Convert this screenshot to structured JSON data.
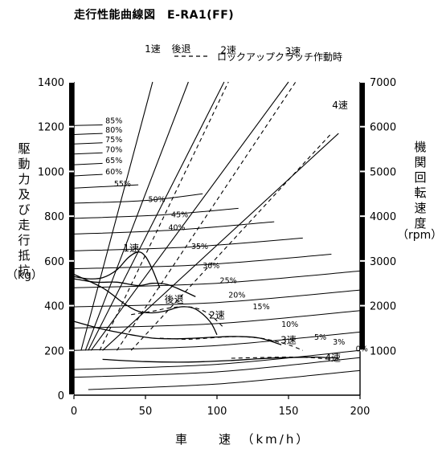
{
  "chart_data": {
    "type": "line",
    "title": "走行性能曲線図　E-RA1(FF)",
    "legend_dashed": "ロックアップクラッチ作動時",
    "xlabel": "車　　速　（km/h）",
    "ylabel_left": [
      "駆",
      "動",
      "力",
      "及",
      "び",
      "走",
      "行",
      "抵",
      "抗"
    ],
    "ylabel_left_unit": "（kg）",
    "ylabel_right": [
      "機",
      "関",
      "回",
      "転",
      "速",
      "度"
    ],
    "ylabel_right_unit": "（rpm）",
    "xlim": [
      0,
      200
    ],
    "ylim_left": [
      0,
      1400
    ],
    "ylim_right": [
      0,
      7000
    ],
    "xticks": [
      "0",
      "50",
      "100",
      "150",
      "200"
    ],
    "yticks_left": [
      "0",
      "200",
      "400",
      "600",
      "800",
      "1000",
      "1200",
      "1400"
    ],
    "yticks_right": [
      "1000",
      "2000",
      "3000",
      "4000",
      "5000",
      "6000",
      "7000"
    ],
    "rpm_lines": [
      {
        "label": "1速",
        "x": [
          5,
          55
        ],
        "rpm": [
          1000,
          7000
        ]
      },
      {
        "label": "後退",
        "x": [
          8,
          80
        ],
        "rpm": [
          1000,
          7000
        ]
      },
      {
        "label": "2速",
        "x": [
          10,
          105
        ],
        "rpm": [
          1000,
          7000
        ]
      },
      {
        "label": "3速",
        "x": [
          12,
          150
        ],
        "rpm": [
          1000,
          7000
        ]
      },
      {
        "label": "4速",
        "x": [
          20,
          185
        ],
        "rpm": [
          1000,
          5850
        ]
      }
    ],
    "rpm_lines_lockup": [
      {
        "label": "2速",
        "x": [
          18,
          108
        ],
        "rpm": [
          1000,
          7000
        ]
      },
      {
        "label": "3速",
        "x": [
          30,
          155
        ],
        "rpm": [
          1000,
          7000
        ]
      },
      {
        "label": "4速",
        "x": [
          40,
          180
        ],
        "rpm": [
          1000,
          5850
        ]
      }
    ],
    "drive_force_curves": [
      {
        "label": "1速",
        "x": [
          0,
          10,
          20,
          30,
          38,
          45,
          50,
          55,
          60
        ],
        "y": [
          530,
          520,
          525,
          560,
          615,
          640,
          620,
          560,
          480
        ]
      },
      {
        "label": "後退",
        "x": [
          0,
          15,
          30,
          45,
          55,
          65,
          75,
          85
        ],
        "y": [
          520,
          505,
          505,
          490,
          500,
          495,
          470,
          440
        ]
      },
      {
        "label": "2速",
        "x": [
          0,
          20,
          35,
          45,
          55,
          65,
          75,
          85,
          95,
          100
        ],
        "y": [
          540,
          480,
          410,
          375,
          368,
          378,
          395,
          385,
          330,
          270
        ]
      },
      {
        "label": "3速",
        "x": [
          0,
          20,
          40,
          55,
          70,
          85,
          100,
          115,
          130,
          145
        ],
        "y": [
          330,
          295,
          270,
          255,
          252,
          255,
          260,
          262,
          255,
          225
        ]
      },
      {
        "label": "4速",
        "x": [
          20,
          50,
          80,
          110,
          130,
          150,
          170,
          185
        ],
        "y": [
          160,
          150,
          148,
          155,
          163,
          168,
          170,
          165
        ]
      }
    ],
    "drive_force_curves_lockup": [
      {
        "label": "2速",
        "x": [
          40,
          55,
          65,
          75,
          85,
          95,
          105
        ],
        "y": [
          360,
          375,
          388,
          395,
          390,
          360,
          300
        ]
      },
      {
        "label": "3速",
        "x": [
          60,
          80,
          100,
          115,
          125,
          135,
          150,
          160
        ],
        "y": [
          255,
          250,
          258,
          262,
          258,
          250,
          225,
          200
        ]
      },
      {
        "label": "4速",
        "x": [
          110,
          130,
          150,
          165,
          180
        ],
        "y": [
          165,
          168,
          170,
          168,
          160
        ]
      }
    ],
    "resistance_curves": [
      {
        "label": "85%",
        "x": [
          0,
          20
        ],
        "y": [
          1205,
          1208
        ]
      },
      {
        "label": "80%",
        "x": [
          0,
          20
        ],
        "y": [
          1165,
          1170
        ]
      },
      {
        "label": "75%",
        "x": [
          0,
          20
        ],
        "y": [
          1123,
          1128
        ]
      },
      {
        "label": "70%",
        "x": [
          0,
          20
        ],
        "y": [
          1078,
          1083
        ]
      },
      {
        "label": "65%",
        "x": [
          0,
          20
        ],
        "y": [
          1030,
          1036
        ]
      },
      {
        "label": "60%",
        "x": [
          0,
          20
        ],
        "y": [
          980,
          987
        ]
      },
      {
        "label": "55%",
        "x": [
          0,
          45
        ],
        "y": [
          925,
          940
        ]
      },
      {
        "label": "50%",
        "x": [
          0,
          50,
          90
        ],
        "y": [
          858,
          870,
          900
        ]
      },
      {
        "label": "45%",
        "x": [
          0,
          60,
          115
        ],
        "y": [
          790,
          805,
          835
        ]
      },
      {
        "label": "40%",
        "x": [
          0,
          70,
          140
        ],
        "y": [
          720,
          738,
          775
        ]
      },
      {
        "label": "35%",
        "x": [
          0,
          80,
          160
        ],
        "y": [
          645,
          662,
          702
        ]
      },
      {
        "label": "30%",
        "x": [
          0,
          90,
          180
        ],
        "y": [
          565,
          583,
          630
        ]
      },
      {
        "label": "25%",
        "x": [
          0,
          100,
          200
        ],
        "y": [
          480,
          500,
          555
        ]
      },
      {
        "label": "20%",
        "x": [
          0,
          100,
          200
        ],
        "y": [
          395,
          414,
          470
        ]
      },
      {
        "label": "15%",
        "x": [
          0,
          100,
          200
        ],
        "y": [
          300,
          320,
          378
        ]
      },
      {
        "label": "10%",
        "x": [
          0,
          100,
          200
        ],
        "y": [
          200,
          222,
          282
        ]
      },
      {
        "label": "5%",
        "x": [
          0,
          100,
          200
        ],
        "y": [
          115,
          138,
          200
        ]
      },
      {
        "label": "3%",
        "x": [
          0,
          100,
          200
        ],
        "y": [
          80,
          104,
          168
        ]
      },
      {
        "label": "0%",
        "x": [
          10,
          100,
          200
        ],
        "y": [
          25,
          50,
          110
        ]
      }
    ],
    "resistance_label_positions": [
      {
        "label": "85%",
        "x": 22,
        "y": 1230
      },
      {
        "label": "80%",
        "x": 22,
        "y": 1188
      },
      {
        "label": "75%",
        "x": 22,
        "y": 1146
      },
      {
        "label": "70%",
        "x": 22,
        "y": 1100
      },
      {
        "label": "65%",
        "x": 22,
        "y": 1052
      },
      {
        "label": "60%",
        "x": 22,
        "y": 1002
      },
      {
        "label": "55%",
        "x": 28,
        "y": 948
      },
      {
        "label": "50%",
        "x": 52,
        "y": 878
      },
      {
        "label": "45%",
        "x": 68,
        "y": 810
      },
      {
        "label": "40%",
        "x": 66,
        "y": 752
      },
      {
        "label": "35%",
        "x": 82,
        "y": 668
      },
      {
        "label": "30%",
        "x": 90,
        "y": 582
      },
      {
        "label": "25%",
        "x": 102,
        "y": 515
      },
      {
        "label": "20%",
        "x": 108,
        "y": 450
      },
      {
        "label": "15%",
        "x": 125,
        "y": 398
      },
      {
        "label": "10%",
        "x": 145,
        "y": 320
      },
      {
        "label": "5%",
        "x": 168,
        "y": 262
      },
      {
        "label": "3%",
        "x": 181,
        "y": 240
      },
      {
        "label": "0%",
        "x": 197,
        "y": 210
      }
    ],
    "gear_label_positions": [
      {
        "label": "1速",
        "x": 55,
        "y": 1550
      },
      {
        "label": "後退",
        "x": 75,
        "y": 1550
      },
      {
        "label": "2速",
        "x": 108,
        "y": 1545
      },
      {
        "label": "3速",
        "x": 153,
        "y": 1540
      },
      {
        "label": "4速",
        "x": 186,
        "y": 1300
      },
      {
        "label": "1速",
        "x": 40,
        "y": 660
      },
      {
        "label": "後退",
        "x": 70,
        "y": 430
      },
      {
        "label": "2速",
        "x": 100,
        "y": 360
      },
      {
        "label": "3速",
        "x": 150,
        "y": 250
      },
      {
        "label": "4速",
        "x": 181,
        "y": 170
      }
    ]
  }
}
